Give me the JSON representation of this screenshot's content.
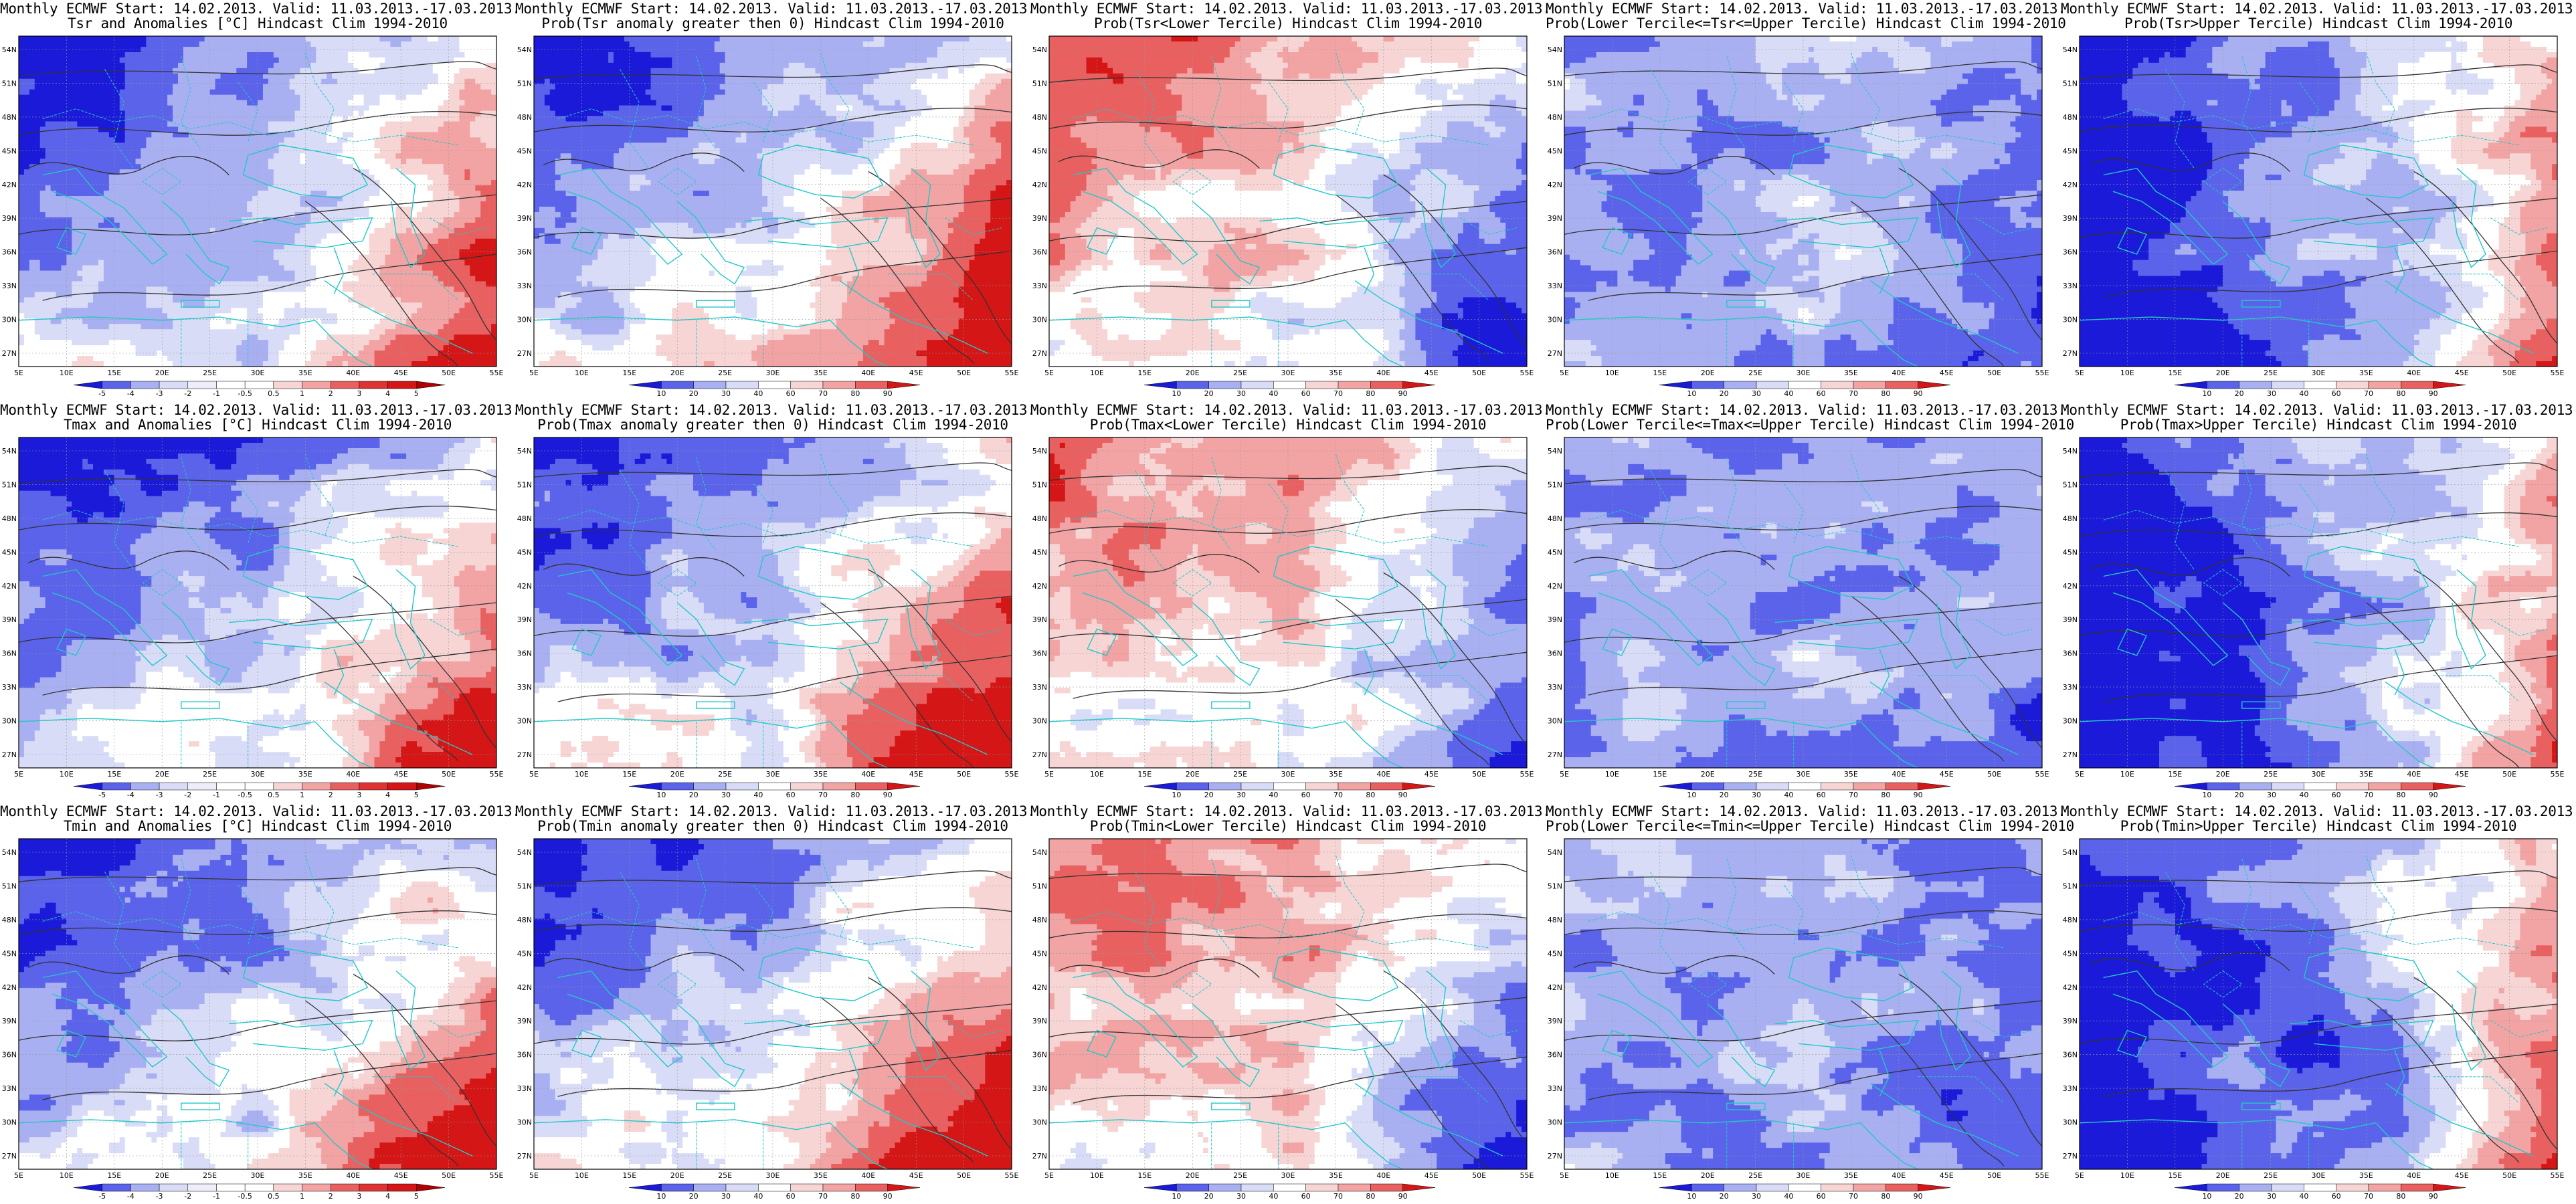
{
  "figure": {
    "lat_labels": [
      "54N",
      "51N",
      "48N",
      "45N",
      "42N",
      "39N",
      "36N",
      "33N",
      "30N",
      "27N"
    ],
    "lon_labels": [
      "5E",
      "10E",
      "15E",
      "20E",
      "25E",
      "30E",
      "35E",
      "40E",
      "45E",
      "50E",
      "55E"
    ],
    "colors": {
      "blue_dark": "#1a1ad8",
      "blue_mid": "#5a63ea",
      "blue_light": "#a9b0f2",
      "blue_pale": "#d9dcf7",
      "white": "#ffffff",
      "red_pale": "#f7d5d5",
      "red_light": "#f2a3a3",
      "red_mid": "#e86060",
      "red_dark": "#d41616",
      "coast": "#22c8c8",
      "contour": "#333333"
    },
    "anomaly_colorbar": [
      "-5",
      "-4",
      "-3",
      "-2",
      "-1",
      "-0.5",
      "0.5",
      "1",
      "2",
      "3",
      "4",
      "5"
    ],
    "prob_colorbar": [
      "10",
      "20",
      "30",
      "40",
      "60",
      "70",
      "80",
      "90"
    ],
    "panels": [
      {
        "id": "tsr-anom",
        "title1": "Monthly ECMWF Start: 14.02.2013. Valid: 11.03.2013.-17.03.2013.",
        "title2": "Tsr and Anomalies [°C] Hindcast Clim 1994-2010",
        "bar": "anomaly",
        "pattern": "anom"
      },
      {
        "id": "tsr-pos",
        "title1": "Monthly ECMWF Start: 14.02.2013. Valid: 11.03.2013.-17.03.2013.",
        "title2": "Prob(Tsr anomaly greater then 0) Hindcast Clim 1994-2010",
        "bar": "prob",
        "pattern": "pos"
      },
      {
        "id": "tsr-lower",
        "title1": "Monthly ECMWF Start: 14.02.2013. Valid: 11.03.2013.-17.03.2013.",
        "title2": "Prob(Tsr<Lower Tercile) Hindcast Clim 1994-2010",
        "bar": "prob",
        "pattern": "lower"
      },
      {
        "id": "tsr-middle",
        "title1": "Monthly ECMWF Start: 14.02.2013. Valid: 11.03.2013.-17.03.2013.",
        "title2": "Prob(Lower Tercile<=Tsr<=Upper Tercile) Hindcast Clim 1994-2010",
        "bar": "prob",
        "pattern": "middle"
      },
      {
        "id": "tsr-upper",
        "title1": "Monthly ECMWF Start: 14.02.2013. Valid: 11.03.2013.-17.03.2013.",
        "title2": "Prob(Tsr>Upper Tercile) Hindcast Clim 1994-2010",
        "bar": "prob",
        "pattern": "upper"
      },
      {
        "id": "tmax-anom",
        "title1": "Monthly ECMWF Start: 14.02.2013. Valid: 11.03.2013.-17.03.2013.",
        "title2": "Tmax and Anomalies [°C] Hindcast Clim 1994-2010",
        "bar": "anomaly",
        "pattern": "anom"
      },
      {
        "id": "tmax-pos",
        "title1": "Monthly ECMWF Start: 14.02.2013. Valid: 11.03.2013.-17.03.2013.",
        "title2": "Prob(Tmax anomaly greater then 0) Hindcast Clim 1994-2010",
        "bar": "prob",
        "pattern": "pos"
      },
      {
        "id": "tmax-lower",
        "title1": "Monthly ECMWF Start: 14.02.2013. Valid: 11.03.2013.-17.03.2013.",
        "title2": "Prob(Tmax<Lower Tercile) Hindcast Clim 1994-2010",
        "bar": "prob",
        "pattern": "lower"
      },
      {
        "id": "tmax-middle",
        "title1": "Monthly ECMWF Start: 14.02.2013. Valid: 11.03.2013.-17.03.2013.",
        "title2": "Prob(Lower Tercile<=Tmax<=Upper Tercile) Hindcast Clim 1994-2010",
        "bar": "prob",
        "pattern": "middle"
      },
      {
        "id": "tmax-upper",
        "title1": "Monthly ECMWF Start: 14.02.2013. Valid: 11.03.2013.-17.03.2013.",
        "title2": "Prob(Tmax>Upper Tercile) Hindcast Clim 1994-2010",
        "bar": "prob",
        "pattern": "upper"
      },
      {
        "id": "tmin-anom",
        "title1": "Monthly ECMWF Start: 14.02.2013. Valid: 11.03.2013.-17.03.2013.",
        "title2": "Tmin and Anomalies [°C] Hindcast Clim 1994-2010",
        "bar": "anomaly",
        "pattern": "anom"
      },
      {
        "id": "tmin-pos",
        "title1": "Monthly ECMWF Start: 14.02.2013. Valid: 11.03.2013.-17.03.2013.",
        "title2": "Prob(Tmin anomaly greater then 0) Hindcast Clim 1994-2010",
        "bar": "prob",
        "pattern": "pos"
      },
      {
        "id": "tmin-lower",
        "title1": "Monthly ECMWF Start: 14.02.2013. Valid: 11.03.2013.-17.03.2013.",
        "title2": "Prob(Tmin<Lower Tercile) Hindcast Clim 1994-2010",
        "bar": "prob",
        "pattern": "lower"
      },
      {
        "id": "tmin-middle",
        "title1": "Monthly ECMWF Start: 14.02.2013. Valid: 11.03.2013.-17.03.2013.",
        "title2": "Prob(Lower Tercile<=Tmin<=Upper Tercile) Hindcast Clim 1994-2010",
        "bar": "prob",
        "pattern": "middle"
      },
      {
        "id": "tmin-upper",
        "title1": "Monthly ECMWF Start: 14.02.2013. Valid: 11.03.2013.-17.03.2013.",
        "title2": "Prob(Tmin>Upper Tercile) Hindcast Clim 1994-2010",
        "bar": "prob",
        "pattern": "upper"
      }
    ]
  }
}
